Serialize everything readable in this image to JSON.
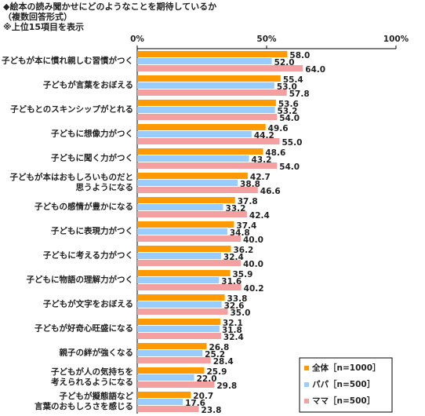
{
  "chart_data": {
    "type": "bar",
    "orientation": "horizontal",
    "title": "◆絵本の読み聞かせにどのようなことを期待しているか",
    "subtitle": "（複数回答形式）",
    "note": "※上位15項目を表示",
    "categories": [
      "子どもが本に慣れ親しむ習慣がつく",
      "子どもが言葉をおぼえる",
      "子どもとのスキンシップがとれる",
      "子どもに想像力がつく",
      "子どもに聞く力がつく",
      "子どもが本はおもしろいものだと\n思うようになる",
      "子どもの感情が豊かになる",
      "子どもに表現力がつく",
      "子どもに考える力がつく",
      "子どもに物語の理解力がつく",
      "子どもが文字をおぼえる",
      "子どもが好奇心旺盛になる",
      "親子の絆が強くなる",
      "子どもが人の気持ちを\n考えられるようになる",
      "子どもが擬態語など\n言葉のおもしろさを感じる"
    ],
    "series": [
      {
        "name": "全体［n=1000］",
        "color": "#ff9900",
        "values": [
          58.0,
          55.4,
          53.6,
          49.6,
          48.6,
          42.7,
          37.8,
          37.4,
          36.2,
          35.9,
          33.8,
          32.1,
          26.8,
          25.9,
          20.7
        ],
        "value_labels": [
          "58.0",
          "55.4",
          "53.6",
          "49.6",
          "48.6",
          "42.7",
          "37.8",
          "37.4",
          "36.2",
          "35.9",
          "33.8",
          "32.1",
          "26.8",
          "25.9",
          "20.7"
        ]
      },
      {
        "name": "パパ［n=500］",
        "color": "#99ccff",
        "values": [
          52.0,
          53.0,
          53.2,
          44.2,
          43.2,
          38.8,
          33.2,
          34.8,
          32.4,
          31.6,
          32.6,
          31.8,
          25.2,
          22.0,
          17.6
        ],
        "value_labels": [
          "52.0",
          "53.0",
          "53.2",
          "44.2",
          "43.2",
          "38.8",
          "33.2",
          "34.8",
          "32.4",
          "31.6",
          "32.6",
          "31.8",
          "25.2",
          "22.0",
          "17.6"
        ]
      },
      {
        "name": "ママ［n=500］",
        "color": "#f4a0a0",
        "values": [
          64.0,
          57.8,
          54.0,
          55.0,
          54.0,
          46.6,
          42.4,
          40.0,
          40.0,
          40.2,
          35.0,
          32.4,
          28.4,
          29.8,
          23.8
        ],
        "value_labels": [
          "64.0",
          "57.8",
          "54.0",
          "55.0",
          "54.0",
          "46.6",
          "42.4",
          "40.0",
          "40.0",
          "40.2",
          "35.0",
          "32.4",
          "28.4",
          "29.8",
          "23.8"
        ]
      }
    ],
    "xlim": [
      0,
      100
    ],
    "xticks": [
      {
        "value": 0,
        "label": "0%"
      },
      {
        "value": 50,
        "label": "50%"
      },
      {
        "value": 100,
        "label": "100%"
      }
    ],
    "legend": "bottom-right"
  }
}
